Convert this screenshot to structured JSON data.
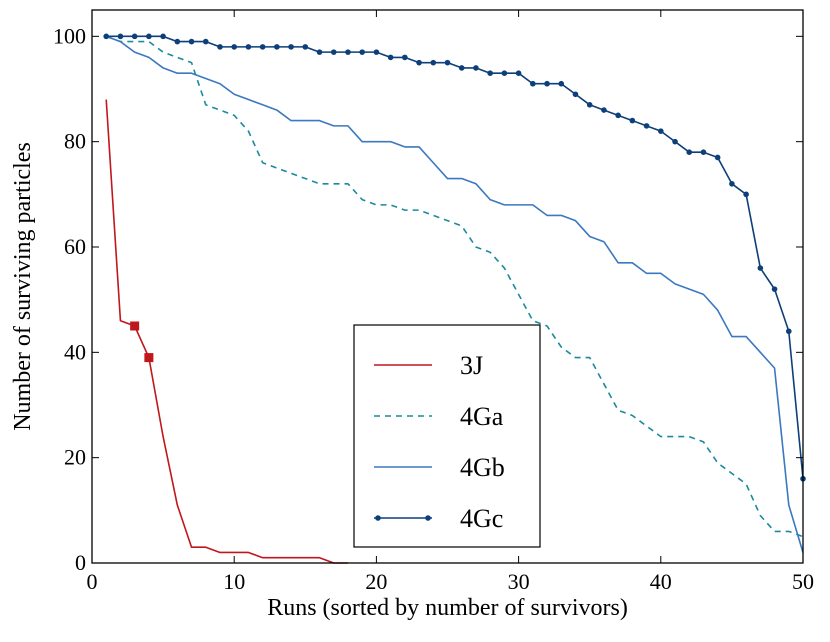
{
  "chart_data": {
    "type": "line",
    "title": "",
    "xlabel": "Runs (sorted by number of survivors)",
    "ylabel": "Number of surviving particles",
    "xlim": [
      0,
      50
    ],
    "ylim": [
      0,
      105
    ],
    "xticks": [
      0,
      10,
      20,
      30,
      40,
      50
    ],
    "yticks": [
      0,
      20,
      40,
      60,
      80,
      100
    ],
    "legend_position": "lower-center",
    "series": [
      {
        "name": "3J",
        "color": "#c0171c",
        "style": "solid",
        "x": [
          1,
          2,
          3,
          4,
          5,
          6,
          7,
          8,
          9,
          10,
          11,
          12,
          13,
          14,
          15,
          16,
          17,
          18
        ],
        "y": [
          88,
          46,
          45,
          39,
          24,
          11,
          3,
          3,
          2,
          2,
          2,
          1,
          1,
          1,
          1,
          1,
          0,
          0
        ],
        "markers_at": [
          3,
          4
        ]
      },
      {
        "name": "4Ga",
        "color": "#1a8a9c",
        "style": "dashed",
        "x": [
          1,
          2,
          3,
          4,
          5,
          6,
          7,
          8,
          9,
          10,
          11,
          12,
          13,
          14,
          15,
          16,
          17,
          18,
          19,
          20,
          21,
          22,
          23,
          24,
          25,
          26,
          27,
          28,
          29,
          30,
          31,
          32,
          33,
          34,
          35,
          36,
          37,
          38,
          39,
          40,
          41,
          42,
          43,
          44,
          45,
          46,
          47,
          48,
          49,
          50
        ],
        "y": [
          100,
          99,
          99,
          99,
          97,
          96,
          95,
          87,
          86,
          85,
          82,
          76,
          75,
          74,
          73,
          72,
          72,
          72,
          69,
          68,
          68,
          67,
          67,
          66,
          65,
          64,
          60,
          59,
          56,
          51,
          46,
          45,
          41,
          39,
          39,
          34,
          29,
          28,
          26,
          24,
          24,
          24,
          23,
          19,
          17,
          15,
          9,
          6,
          6,
          5
        ]
      },
      {
        "name": "4Gb",
        "color": "#3a78c0",
        "style": "solid",
        "x": [
          1,
          2,
          3,
          4,
          5,
          6,
          7,
          8,
          9,
          10,
          11,
          12,
          13,
          14,
          15,
          16,
          17,
          18,
          19,
          20,
          21,
          22,
          23,
          24,
          25,
          26,
          27,
          28,
          29,
          30,
          31,
          32,
          33,
          34,
          35,
          36,
          37,
          38,
          39,
          40,
          41,
          42,
          43,
          44,
          45,
          46,
          47,
          48,
          49,
          50
        ],
        "y": [
          100,
          99,
          97,
          96,
          94,
          93,
          93,
          92,
          91,
          89,
          88,
          87,
          86,
          84,
          84,
          84,
          83,
          83,
          80,
          80,
          80,
          79,
          79,
          76,
          73,
          73,
          72,
          69,
          68,
          68,
          68,
          66,
          66,
          65,
          62,
          61,
          57,
          57,
          55,
          55,
          53,
          52,
          51,
          48,
          43,
          43,
          40,
          37,
          11,
          2
        ]
      },
      {
        "name": "4Gc",
        "color": "#0d3f7a",
        "style": "solid-dots",
        "x": [
          1,
          2,
          3,
          4,
          5,
          6,
          7,
          8,
          9,
          10,
          11,
          12,
          13,
          14,
          15,
          16,
          17,
          18,
          19,
          20,
          21,
          22,
          23,
          24,
          25,
          26,
          27,
          28,
          29,
          30,
          31,
          32,
          33,
          34,
          35,
          36,
          37,
          38,
          39,
          40,
          41,
          42,
          43,
          44,
          45,
          46,
          47,
          48,
          49,
          50
        ],
        "y": [
          100,
          100,
          100,
          100,
          100,
          99,
          99,
          99,
          98,
          98,
          98,
          98,
          98,
          98,
          98,
          97,
          97,
          97,
          97,
          97,
          96,
          96,
          95,
          95,
          95,
          94,
          94,
          93,
          93,
          93,
          91,
          91,
          91,
          89,
          87,
          86,
          85,
          84,
          83,
          82,
          80,
          78,
          78,
          77,
          72,
          70,
          56,
          52,
          44,
          16
        ]
      }
    ]
  }
}
